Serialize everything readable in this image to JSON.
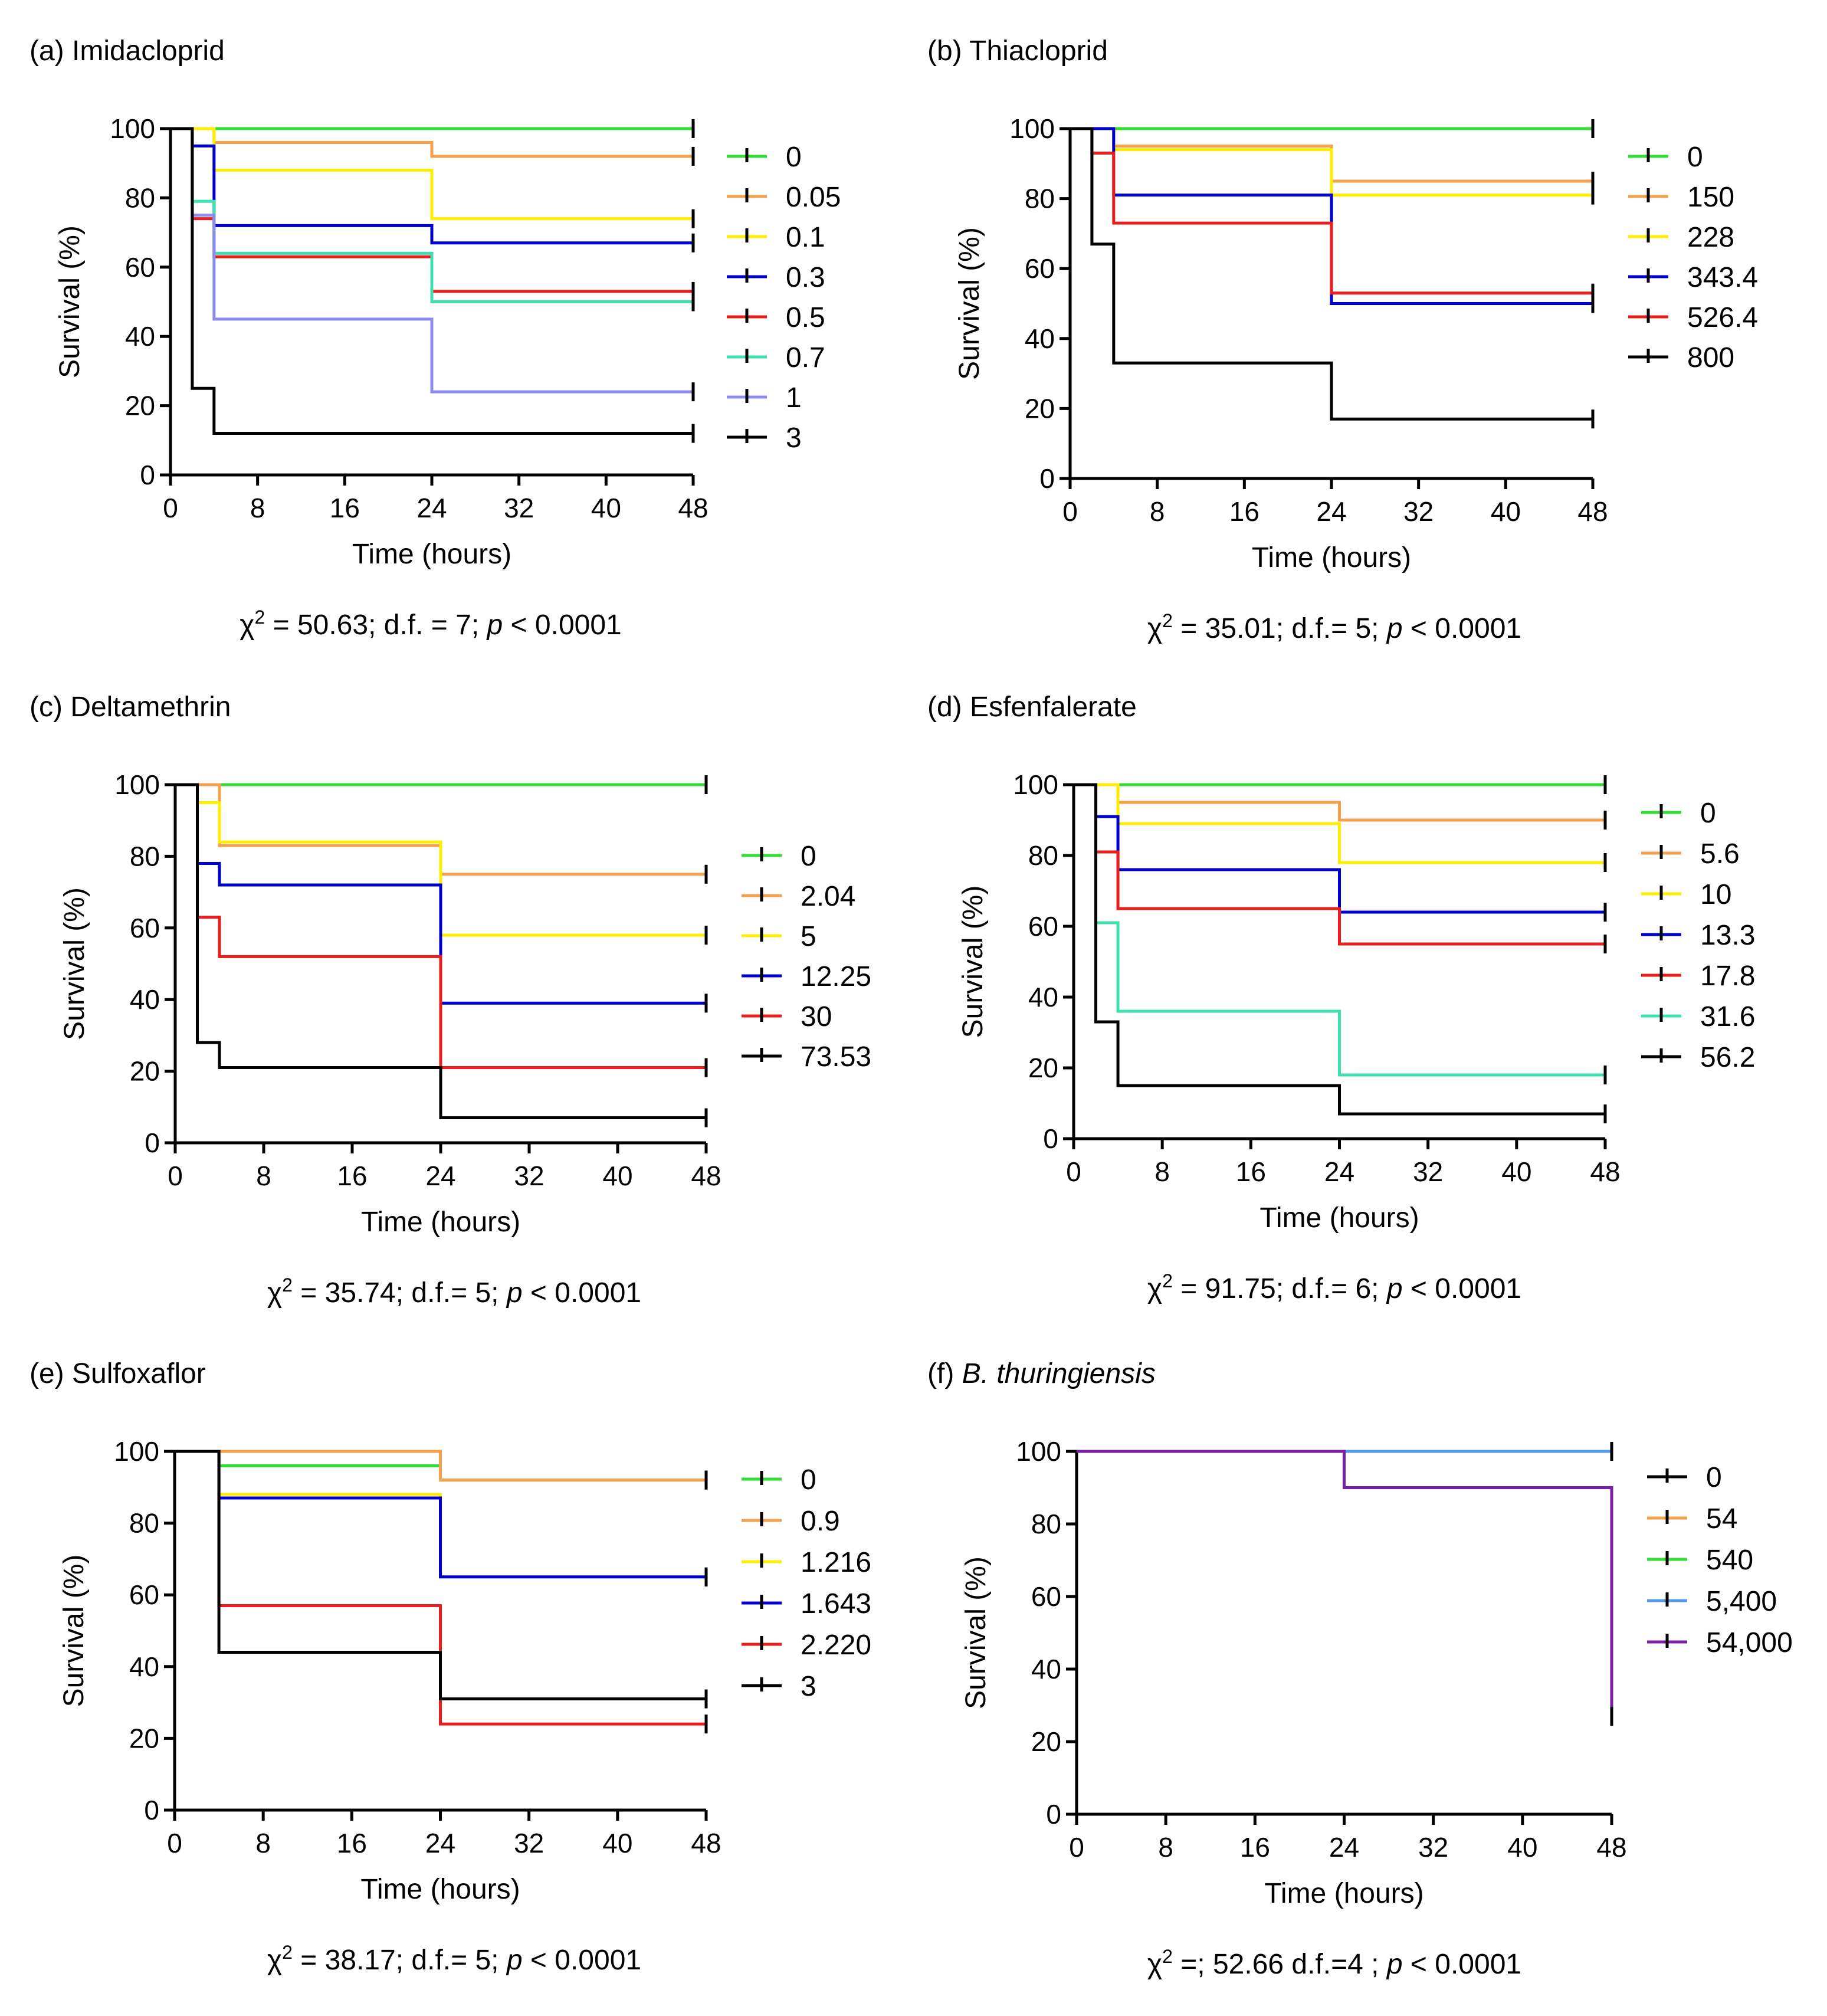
{
  "x_axis_label": "Time (hours)",
  "y_axis_label": "Survival (%)",
  "chart_data": [
    {
      "type": "line",
      "subtype": "kaplan-meier",
      "prefix": "(a)",
      "title": "Imidacloprid",
      "title_italic": false,
      "xlabel": "Time (hours)",
      "ylabel": "Survival (%)",
      "xlim": [
        0,
        48
      ],
      "ylim": [
        0,
        100
      ],
      "xticks": [
        "0",
        "8",
        "16",
        "24",
        "32",
        "40",
        "48"
      ],
      "yticks": [
        "0",
        "20",
        "40",
        "60",
        "80",
        "100"
      ],
      "stat": {
        "pre": " = 50.63; d.f. = 7; ",
        "post": " < 0.0001"
      },
      "series": [
        {
          "name": "0",
          "color": "#33dd33",
          "x": [
            0,
            48
          ],
          "y": [
            100,
            100
          ]
        },
        {
          "name": "0.05",
          "color": "#f5a04a",
          "x": [
            0,
            4,
            24,
            48
          ],
          "y": [
            100,
            96,
            92,
            92
          ]
        },
        {
          "name": "0.1",
          "color": "#ffee00",
          "x": [
            0,
            4,
            24,
            48
          ],
          "y": [
            100,
            88,
            74,
            74
          ]
        },
        {
          "name": "0.3",
          "color": "#0000cc",
          "x": [
            0,
            2,
            4,
            24,
            48
          ],
          "y": [
            100,
            95,
            72,
            67,
            67
          ]
        },
        {
          "name": "0.5",
          "color": "#e81e1e",
          "x": [
            0,
            2,
            4,
            24,
            48
          ],
          "y": [
            100,
            74,
            63,
            53,
            53
          ]
        },
        {
          "name": "0.7",
          "color": "#3ee0b0",
          "x": [
            0,
            2,
            4,
            24,
            48
          ],
          "y": [
            100,
            79,
            64,
            50,
            50
          ]
        },
        {
          "name": "1",
          "color": "#8c8cf0",
          "x": [
            0,
            2,
            4,
            24,
            48
          ],
          "y": [
            100,
            75,
            45,
            24,
            24
          ]
        },
        {
          "name": "3",
          "color": "#000000",
          "x": [
            0,
            2,
            4,
            48
          ],
          "y": [
            100,
            25,
            12,
            12
          ]
        }
      ]
    },
    {
      "type": "line",
      "subtype": "kaplan-meier",
      "prefix": "(b)",
      "title": "Thiacloprid",
      "title_italic": false,
      "xlabel": "Time (hours)",
      "ylabel": "Survival (%)",
      "xlim": [
        0,
        48
      ],
      "ylim": [
        0,
        100
      ],
      "xticks": [
        "0",
        "8",
        "16",
        "24",
        "32",
        "40",
        "48"
      ],
      "yticks": [
        "0",
        "20",
        "40",
        "60",
        "80",
        "100"
      ],
      "stat": {
        "pre": " = 35.01; d.f.= 5; ",
        "post": " < 0.0001"
      },
      "series": [
        {
          "name": "0",
          "color": "#33dd33",
          "x": [
            0,
            48
          ],
          "y": [
            100,
            100
          ]
        },
        {
          "name": "150",
          "color": "#f5a04a",
          "x": [
            0,
            4,
            24,
            48
          ],
          "y": [
            100,
            95,
            85,
            85
          ]
        },
        {
          "name": "228",
          "color": "#ffee00",
          "x": [
            0,
            4,
            24,
            48
          ],
          "y": [
            100,
            94,
            81,
            81
          ]
        },
        {
          "name": "343.4",
          "color": "#0000cc",
          "x": [
            0,
            4,
            24,
            48
          ],
          "y": [
            100,
            81,
            50,
            50
          ]
        },
        {
          "name": "526.4",
          "color": "#e81e1e",
          "x": [
            0,
            2,
            4,
            24,
            48
          ],
          "y": [
            100,
            93,
            73,
            53,
            53
          ]
        },
        {
          "name": "800",
          "color": "#000000",
          "x": [
            0,
            2,
            4,
            24,
            48
          ],
          "y": [
            100,
            67,
            33,
            17,
            17
          ]
        }
      ]
    },
    {
      "type": "line",
      "subtype": "kaplan-meier",
      "prefix": "(c)",
      "title": "Deltamethrin",
      "title_italic": false,
      "xlabel": "Time (hours)",
      "ylabel": "Survival (%)",
      "xlim": [
        0,
        48
      ],
      "ylim": [
        0,
        100
      ],
      "xticks": [
        "0",
        "8",
        "16",
        "24",
        "32",
        "40",
        "48"
      ],
      "yticks": [
        "0",
        "20",
        "40",
        "60",
        "80",
        "100"
      ],
      "stat": {
        "pre": " = 35.74; d.f.= 5; ",
        "post": " < 0.0001"
      },
      "series": [
        {
          "name": "0",
          "color": "#33dd33",
          "x": [
            0,
            48
          ],
          "y": [
            100,
            100
          ]
        },
        {
          "name": "2.04",
          "color": "#f5a04a",
          "x": [
            0,
            4,
            24,
            48
          ],
          "y": [
            100,
            83,
            75,
            75
          ]
        },
        {
          "name": "5",
          "color": "#ffee00",
          "x": [
            0,
            2,
            4,
            24,
            48
          ],
          "y": [
            100,
            95,
            84,
            58,
            58
          ]
        },
        {
          "name": "12.25",
          "color": "#0000cc",
          "x": [
            0,
            2,
            4,
            24,
            48
          ],
          "y": [
            100,
            78,
            72,
            39,
            39
          ]
        },
        {
          "name": "30",
          "color": "#e81e1e",
          "x": [
            0,
            2,
            4,
            24,
            48
          ],
          "y": [
            100,
            63,
            52,
            21,
            21
          ]
        },
        {
          "name": "73.53",
          "color": "#000000",
          "x": [
            0,
            2,
            4,
            24,
            48
          ],
          "y": [
            100,
            28,
            21,
            7,
            7
          ]
        }
      ]
    },
    {
      "type": "line",
      "subtype": "kaplan-meier",
      "prefix": "(d)",
      "title": "Esfenfalerate",
      "title_italic": false,
      "xlabel": "Time (hours)",
      "ylabel": "Survival (%)",
      "xlim": [
        0,
        48
      ],
      "ylim": [
        0,
        100
      ],
      "xticks": [
        "0",
        "8",
        "16",
        "24",
        "32",
        "40",
        "48"
      ],
      "yticks": [
        "0",
        "20",
        "40",
        "60",
        "80",
        "100"
      ],
      "stat": {
        "pre": " = 91.75; d.f.= 6; ",
        "post": " < 0.0001"
      },
      "series": [
        {
          "name": "0",
          "color": "#33dd33",
          "x": [
            0,
            48
          ],
          "y": [
            100,
            100
          ]
        },
        {
          "name": "5.6",
          "color": "#f5a04a",
          "x": [
            0,
            4,
            24,
            48
          ],
          "y": [
            100,
            95,
            90,
            90
          ]
        },
        {
          "name": "10",
          "color": "#ffee00",
          "x": [
            0,
            4,
            24,
            48
          ],
          "y": [
            100,
            89,
            78,
            78
          ]
        },
        {
          "name": "13.3",
          "color": "#0000cc",
          "x": [
            0,
            2,
            4,
            24,
            48
          ],
          "y": [
            100,
            91,
            76,
            64,
            64
          ]
        },
        {
          "name": "17.8",
          "color": "#e81e1e",
          "x": [
            0,
            2,
            4,
            24,
            48
          ],
          "y": [
            100,
            81,
            65,
            55,
            55
          ]
        },
        {
          "name": "31.6",
          "color": "#3ee0b0",
          "x": [
            0,
            2,
            4,
            24,
            48
          ],
          "y": [
            100,
            61,
            36,
            18,
            18
          ]
        },
        {
          "name": "56.2",
          "color": "#000000",
          "x": [
            0,
            2,
            4,
            24,
            48
          ],
          "y": [
            100,
            33,
            15,
            7,
            7
          ]
        }
      ]
    },
    {
      "type": "line",
      "subtype": "kaplan-meier",
      "prefix": "(e)",
      "title": "Sulfoxaflor",
      "title_italic": false,
      "xlabel": "Time (hours)",
      "ylabel": "Survival (%)",
      "xlim": [
        0,
        48
      ],
      "ylim": [
        0,
        100
      ],
      "xticks": [
        "0",
        "8",
        "16",
        "24",
        "32",
        "40",
        "48"
      ],
      "yticks": [
        "0",
        "20",
        "40",
        "60",
        "80",
        "100"
      ],
      "stat": {
        "pre": " = 38.17; d.f.= 5; ",
        "post": " < 0.0001"
      },
      "series": [
        {
          "name": "0",
          "color": "#33dd33",
          "x": [
            0,
            4,
            24,
            48
          ],
          "y": [
            100,
            96,
            92,
            92
          ]
        },
        {
          "name": "0.9",
          "color": "#f5a04a",
          "x": [
            0,
            24,
            48
          ],
          "y": [
            100,
            92,
            92
          ]
        },
        {
          "name": "1.216",
          "color": "#ffee00",
          "x": [
            0,
            4,
            24,
            48
          ],
          "y": [
            100,
            88,
            65,
            65
          ]
        },
        {
          "name": "1.643",
          "color": "#0000cc",
          "x": [
            0,
            4,
            24,
            48
          ],
          "y": [
            100,
            87,
            65,
            65
          ]
        },
        {
          "name": "2.220",
          "color": "#e81e1e",
          "x": [
            0,
            4,
            24,
            48
          ],
          "y": [
            100,
            57,
            24,
            24
          ]
        },
        {
          "name": "3",
          "color": "#000000",
          "x": [
            0,
            4,
            24,
            48
          ],
          "y": [
            100,
            44,
            31,
            31
          ]
        }
      ]
    },
    {
      "type": "line",
      "subtype": "kaplan-meier",
      "prefix": "(f)",
      "title": "B. thuringiensis",
      "title_italic": true,
      "xlabel": "Time (hours)",
      "ylabel": "Survival (%)",
      "xlim": [
        0,
        48
      ],
      "ylim": [
        0,
        100
      ],
      "xticks": [
        "0",
        "8",
        "16",
        "24",
        "32",
        "40",
        "48"
      ],
      "yticks": [
        "0",
        "20",
        "40",
        "60",
        "80",
        "100"
      ],
      "stat": {
        "pre": " =; 52.66 d.f.=4 ; ",
        "post": " < 0.0001"
      },
      "series": [
        {
          "name": "0",
          "color": "#000000",
          "x": [
            0,
            48
          ],
          "y": [
            100,
            100
          ]
        },
        {
          "name": "54",
          "color": "#f5a04a",
          "x": [
            0,
            48
          ],
          "y": [
            100,
            100
          ]
        },
        {
          "name": "540",
          "color": "#33dd33",
          "x": [
            0,
            48
          ],
          "y": [
            100,
            100
          ]
        },
        {
          "name": "5,400",
          "color": "#5599ee",
          "x": [
            0,
            48
          ],
          "y": [
            100,
            100
          ]
        },
        {
          "name": "54,000",
          "color": "#7a1fa8",
          "x": [
            0,
            24,
            48
          ],
          "y": [
            100,
            90,
            27
          ]
        }
      ]
    }
  ]
}
